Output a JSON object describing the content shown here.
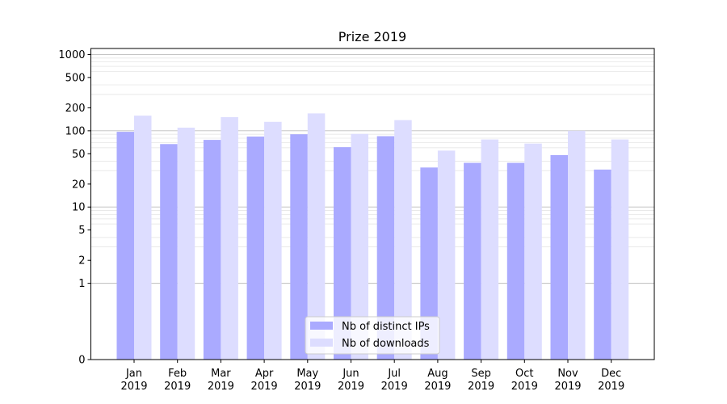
{
  "chart_data": {
    "type": "bar",
    "title": "Prize 2019",
    "xlabel": "",
    "ylabel": "",
    "yscale": "symlog",
    "ylim": [
      0,
      1200
    ],
    "yticks": [
      0,
      1,
      2,
      5,
      10,
      20,
      50,
      100,
      200,
      500,
      1000
    ],
    "ytick_labels": [
      "0",
      "1",
      "2",
      "5",
      "10",
      "20",
      "50",
      "100",
      "200",
      "500",
      "1000"
    ],
    "categories": [
      [
        "Jan",
        "2019"
      ],
      [
        "Feb",
        "2019"
      ],
      [
        "Mar",
        "2019"
      ],
      [
        "Apr",
        "2019"
      ],
      [
        "May",
        "2019"
      ],
      [
        "Jun",
        "2019"
      ],
      [
        "Jul",
        "2019"
      ],
      [
        "Aug",
        "2019"
      ],
      [
        "Sep",
        "2019"
      ],
      [
        "Oct",
        "2019"
      ],
      [
        "Nov",
        "2019"
      ],
      [
        "Dec",
        "2019"
      ]
    ],
    "series": [
      {
        "name": "Nb of distinct IPs",
        "color": "#aaaaff",
        "values": [
          97,
          67,
          76,
          84,
          90,
          61,
          85,
          33,
          38,
          38,
          48,
          31
        ]
      },
      {
        "name": "Nb of downloads",
        "color": "#ddddff",
        "values": [
          158,
          110,
          151,
          131,
          169,
          91,
          138,
          55,
          77,
          68,
          100,
          77
        ]
      }
    ],
    "grid": true,
    "legend_position": "bottom-center"
  }
}
